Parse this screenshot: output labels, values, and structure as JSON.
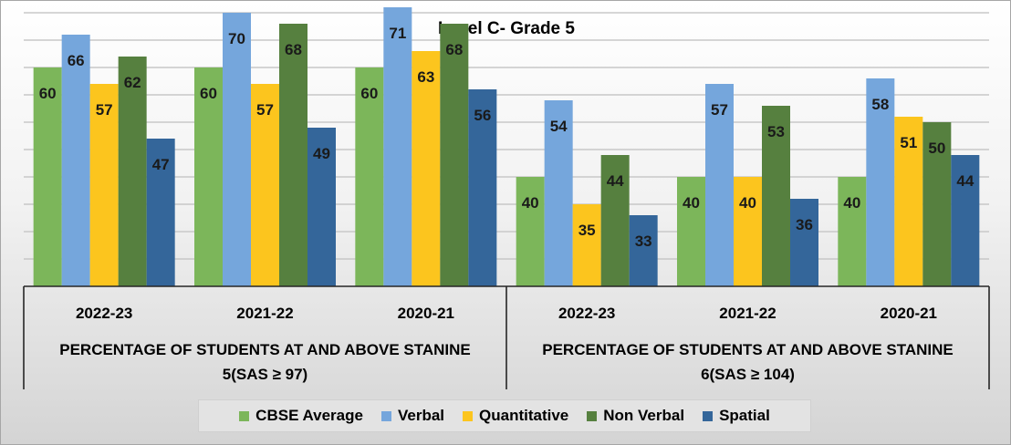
{
  "chart_data": {
    "type": "bar",
    "title": "Level C- Grade 5",
    "groups": [
      {
        "label": "PERCENTAGE OF STUDENTS AT AND ABOVE STANINE 5(SAS ≥ 97)",
        "label_lines": [
          "PERCENTAGE OF STUDENTS AT AND ABOVE STANINE",
          "5(SAS ≥ 97)"
        ],
        "categories": [
          "2022-23",
          "2021-22",
          "2020-21"
        ]
      },
      {
        "label": "PERCENTAGE OF STUDENTS AT AND ABOVE STANINE 6(SAS ≥ 104)",
        "label_lines": [
          "PERCENTAGE OF STUDENTS AT AND ABOVE STANINE",
          "6(SAS ≥ 104)"
        ],
        "categories": [
          "2022-23",
          "2021-22",
          "2020-21"
        ]
      }
    ],
    "categories": [
      "2022-23",
      "2021-22",
      "2020-21",
      "2022-23",
      "2021-22",
      "2020-21"
    ],
    "series": [
      {
        "name": "CBSE Average",
        "color": "#7cb65a",
        "values": [
          60,
          60,
          60,
          40,
          40,
          40
        ]
      },
      {
        "name": "Verbal",
        "color": "#75a6dc",
        "values": [
          66,
          70,
          71,
          54,
          57,
          58
        ]
      },
      {
        "name": "Quantitative",
        "color": "#fcc51e",
        "values": [
          57,
          57,
          63,
          35,
          40,
          51
        ]
      },
      {
        "name": "Non Verbal",
        "color": "#56803f",
        "values": [
          62,
          68,
          68,
          44,
          53,
          50
        ]
      },
      {
        "name": "Spatial",
        "color": "#34669a",
        "values": [
          47,
          49,
          56,
          33,
          36,
          44
        ]
      }
    ],
    "ylim": [
      20,
      72
    ],
    "gridline_step": 5,
    "grid": true,
    "legend_position": "bottom"
  }
}
